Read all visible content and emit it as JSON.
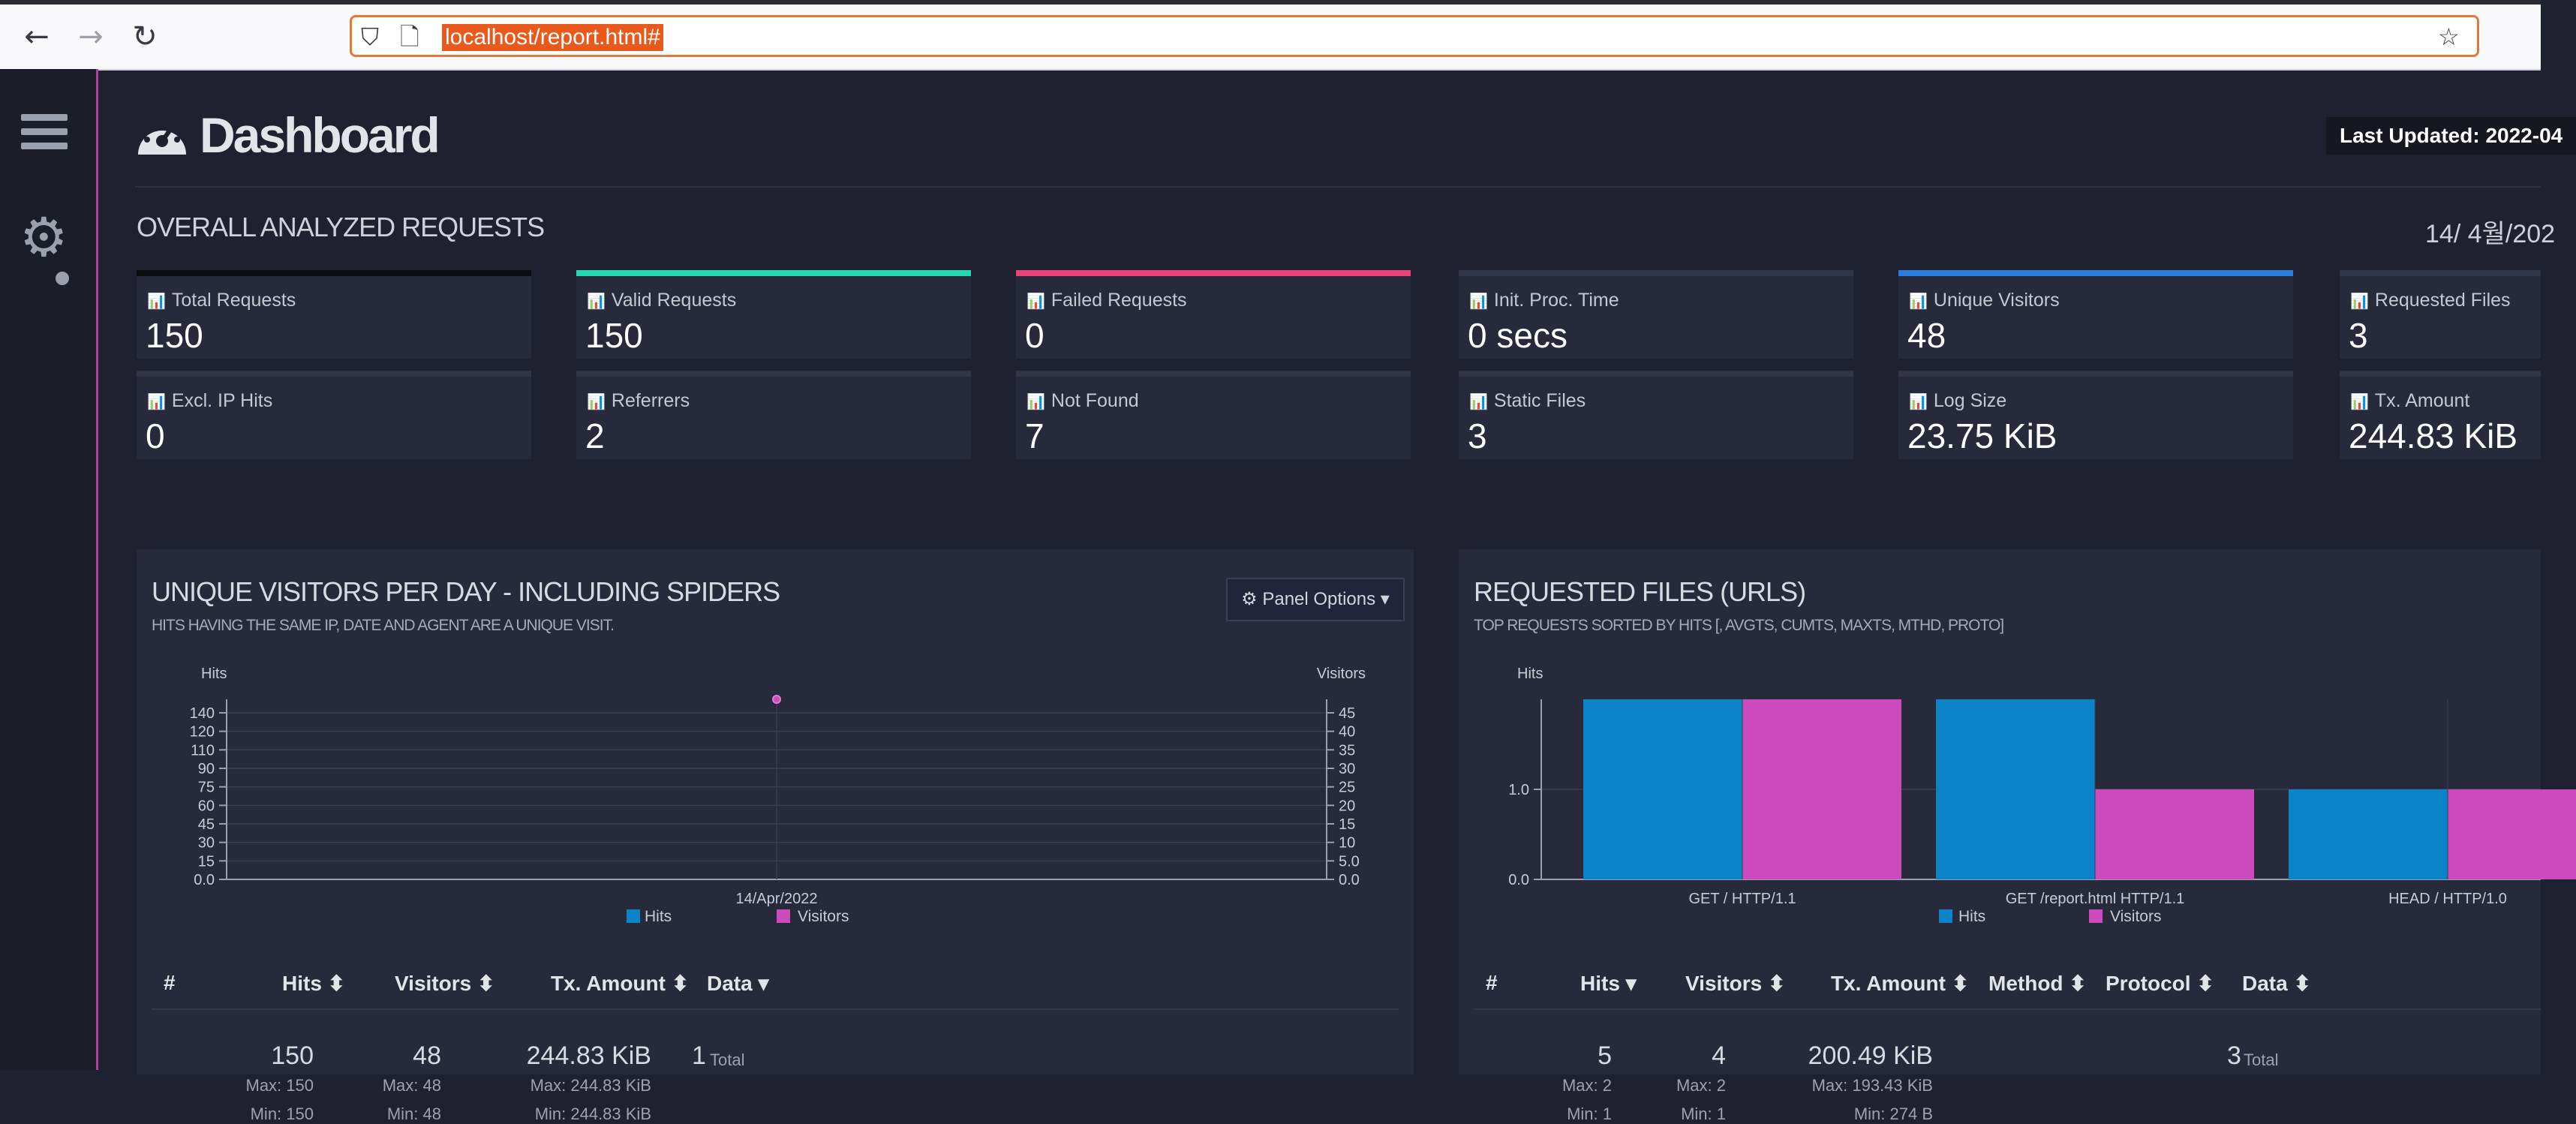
{
  "browser": {
    "url": "localhost/report.html#",
    "back_icon": "←",
    "forward_icon": "→",
    "reload_icon": "↻",
    "shield_icon": "⛉",
    "page_icon": "🗋",
    "star_icon": "☆"
  },
  "header": {
    "title": "Dashboard",
    "last_updated": "Last Updated: 2022-04",
    "section_title": "OVERALL ANALYZED REQUESTS",
    "date": "14/ 4월/202"
  },
  "colors": {
    "hits": "#0a83c8",
    "visitors": "#cb4bbd",
    "valid": "#28d6b0",
    "failed": "#e8447a",
    "unique": "#2b7ddb"
  },
  "cards": [
    {
      "label": "Total Requests",
      "value": "150"
    },
    {
      "label": "Valid Requests",
      "value": "150"
    },
    {
      "label": "Failed Requests",
      "value": "0"
    },
    {
      "label": "Init. Proc. Time",
      "value": "0 secs"
    },
    {
      "label": "Unique Visitors",
      "value": "48"
    },
    {
      "label": "Requested Files",
      "value": "3"
    },
    {
      "label": "Excl. IP Hits",
      "value": "0"
    },
    {
      "label": "Referrers",
      "value": "2"
    },
    {
      "label": "Not Found",
      "value": "7"
    },
    {
      "label": "Static Files",
      "value": "3"
    },
    {
      "label": "Log Size",
      "value": "23.75 KiB"
    },
    {
      "label": "Tx. Amount",
      "value": "244.83 KiB"
    }
  ],
  "visitors_panel": {
    "title": "UNIQUE VISITORS PER DAY - INCLUDING SPIDERS",
    "subtitle": "HITS HAVING THE SAME IP, DATE AND AGENT ARE A UNIQUE VISIT.",
    "options_label": "⚙ Panel Options ▾",
    "table": {
      "headers": [
        "#",
        "Hits ⬍",
        "Visitors ⬍",
        "Tx. Amount ⬍",
        "Data ▾"
      ],
      "row": {
        "hits": "150",
        "hits_max": "Max: 150",
        "hits_min": "Min: 150",
        "visitors": "48",
        "visitors_max": "Max: 48",
        "visitors_min": "Min: 48",
        "tx": "244.83 KiB",
        "tx_max": "Max: 244.83 KiB",
        "tx_min": "Min: 244.83 KiB",
        "data": "1",
        "data_label": "Total"
      }
    }
  },
  "files_panel": {
    "title": "REQUESTED FILES (URLS)",
    "subtitle": "TOP REQUESTS SORTED BY HITS [, AVGTS, CUMTS, MAXTS, MTHD, PROTO]",
    "table": {
      "headers": [
        "#",
        "Hits ▾",
        "Visitors ⬍",
        "Tx. Amount ⬍",
        "Method ⬍",
        "Protocol ⬍",
        "Data ⬍"
      ],
      "row": {
        "hits": "5",
        "hits_max": "Max: 2",
        "hits_min": "Min: 1",
        "visitors": "4",
        "visitors_max": "Max: 2",
        "visitors_min": "Min: 1",
        "tx": "200.49 KiB",
        "tx_max": "Max: 193.43 KiB",
        "tx_min": "Min: 274 B",
        "data": "3",
        "data_label": "Total"
      }
    }
  },
  "chart_data": [
    {
      "type": "line",
      "title": "",
      "xlabel": "",
      "ylabel": "Hits",
      "y2label": "Visitors",
      "categories": [
        "14/Apr/2022"
      ],
      "series": [
        {
          "name": "Hits",
          "values": [
            150
          ],
          "axis": "left"
        },
        {
          "name": "Visitors",
          "values": [
            48
          ],
          "axis": "right"
        }
      ],
      "y_ticks": [
        "0.0",
        "15",
        "30",
        "45",
        "60",
        "75",
        "90",
        "110",
        "120",
        "140"
      ],
      "y2_ticks": [
        "0.0",
        "5.0",
        "10",
        "15",
        "20",
        "25",
        "30",
        "35",
        "40",
        "45"
      ],
      "ylim": [
        0,
        150
      ],
      "y2lim": [
        0,
        48
      ],
      "grid": true,
      "legend": "bottom"
    },
    {
      "type": "bar",
      "title": "",
      "ylabel": "Hits",
      "categories": [
        "GET / HTTP/1.1",
        "GET /report.html HTTP/1.1",
        "HEAD / HTTP/1.0"
      ],
      "series": [
        {
          "name": "Hits",
          "values": [
            2,
            2,
            1
          ]
        },
        {
          "name": "Visitors",
          "values": [
            2,
            1,
            1
          ]
        }
      ],
      "y_ticks": [
        "0.0",
        "1.0"
      ],
      "ylim": [
        0,
        2
      ],
      "grid": true,
      "legend": "bottom"
    }
  ]
}
